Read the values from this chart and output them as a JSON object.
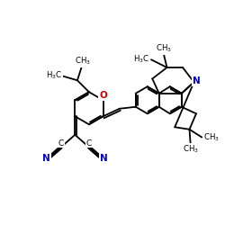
{
  "bg_color": "#ffffff",
  "bond_color": "#000000",
  "n_color": "#0000cd",
  "o_color": "#cc0000",
  "lw": 1.3,
  "figsize": [
    2.5,
    2.5
  ],
  "dpi": 100,
  "xlim": [
    0,
    10
  ],
  "ylim": [
    0,
    10
  ]
}
